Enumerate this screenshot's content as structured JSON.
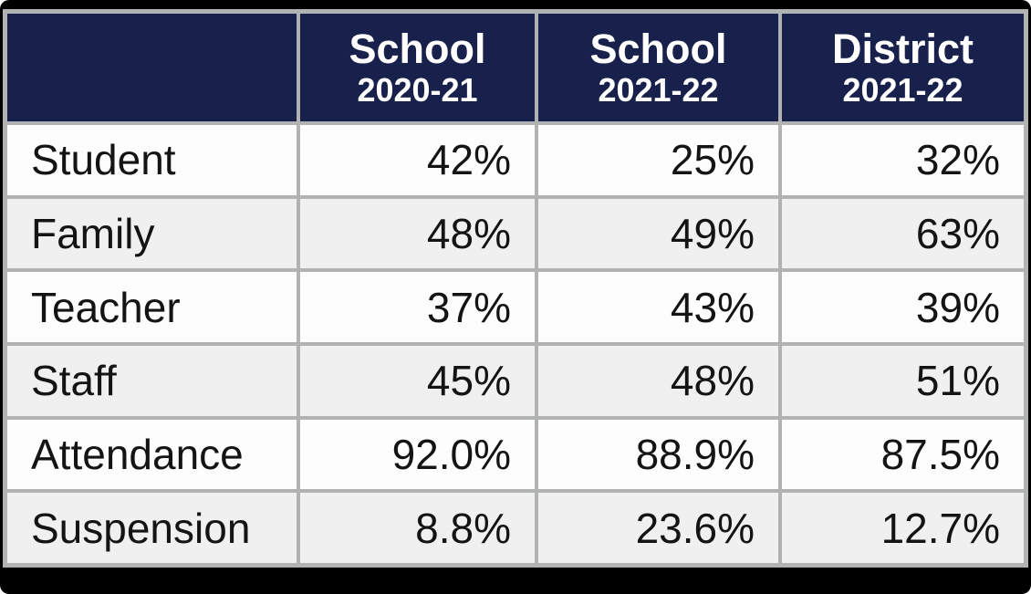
{
  "colors": {
    "frame": "#000000",
    "border": "#b1b3b2",
    "header_bg": "#18204c",
    "header_text": "#ffffff",
    "row_even_bg": "#fdfdfd",
    "row_odd_bg": "#f0f0f0",
    "text": "#141414"
  },
  "table": {
    "columns": [
      {
        "title": "",
        "subtitle": ""
      },
      {
        "title": "School",
        "subtitle": "2020-21"
      },
      {
        "title": "School",
        "subtitle": "2021-22"
      },
      {
        "title": "District",
        "subtitle": "2021-22"
      }
    ],
    "rows": [
      {
        "label": "Student",
        "values": [
          "42%",
          "25%",
          "32%"
        ]
      },
      {
        "label": "Family",
        "values": [
          "48%",
          "49%",
          "63%"
        ]
      },
      {
        "label": "Teacher",
        "values": [
          "37%",
          "43%",
          "39%"
        ]
      },
      {
        "label": "Staff",
        "values": [
          "45%",
          "48%",
          "51%"
        ]
      },
      {
        "label": "Attendance",
        "values": [
          "92.0%",
          "88.9%",
          "87.5%"
        ]
      },
      {
        "label": "Suspension",
        "values": [
          "8.8%",
          "23.6%",
          "12.7%"
        ]
      }
    ]
  },
  "chart_data": {
    "type": "table",
    "title": "",
    "columns": [
      "",
      "School 2020-21",
      "School 2021-22",
      "District 2021-22"
    ],
    "rows": [
      [
        "Student",
        "42%",
        "25%",
        "32%"
      ],
      [
        "Family",
        "48%",
        "49%",
        "63%"
      ],
      [
        "Teacher",
        "37%",
        "43%",
        "39%"
      ],
      [
        "Staff",
        "45%",
        "48%",
        "51%"
      ],
      [
        "Attendance",
        "92.0%",
        "88.9%",
        "87.5%"
      ],
      [
        "Suspension",
        "8.8%",
        "23.6%",
        "12.7%"
      ]
    ]
  }
}
